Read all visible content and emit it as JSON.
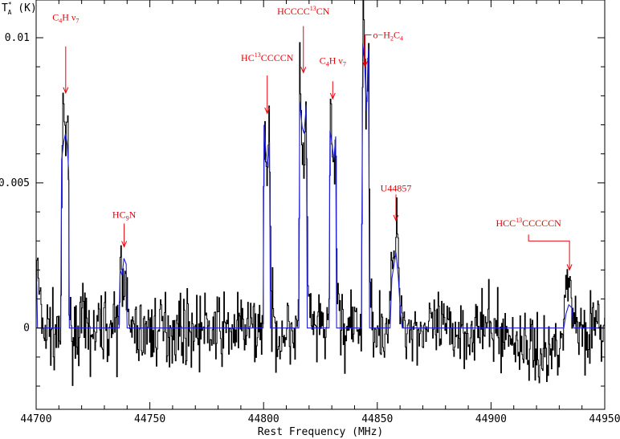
{
  "chart_data": {
    "type": "line",
    "xlabel": "Rest Frequency (MHz)",
    "ylabel": {
      "base": "T",
      "sup": "*",
      "sub": "A",
      "unit": " (K)"
    },
    "xlim": [
      44700,
      44950
    ],
    "ylim": [
      -0.0028,
      0.0113
    ],
    "x_ticks": [
      44700,
      44750,
      44800,
      44850,
      44900,
      44950
    ],
    "x_tick_labels": [
      "44700",
      "44750",
      "44800",
      "44850",
      "44900",
      "44950"
    ],
    "y_ticks": [
      0,
      0.005,
      0.01
    ],
    "y_tick_labels": [
      "0",
      "0.005",
      "0.01"
    ],
    "grid": false,
    "series": [
      {
        "role": "observed spectrum",
        "color": "#000000",
        "noise_rms": 0.0006,
        "points": [
          [
            44700.0,
            0.0022
          ],
          [
            44701.0,
            0.0015
          ],
          [
            44702.0,
            0.0003
          ],
          [
            44704.0,
            -0.0002
          ],
          [
            44706.0,
            0.0001
          ],
          [
            44708.0,
            -0.0004
          ],
          [
            44710.0,
            0.0002
          ],
          [
            44710.8,
            -0.0006
          ],
          [
            44711.2,
            0.0055
          ],
          [
            44711.8,
            0.0081
          ],
          [
            44712.3,
            0.0066
          ],
          [
            44712.9,
            0.0061
          ],
          [
            44713.5,
            0.0073
          ],
          [
            44714.0,
            0.007
          ],
          [
            44714.4,
            0.001
          ],
          [
            44715.0,
            -0.0003
          ],
          [
            44720.0,
            0.0001
          ],
          [
            44725.0,
            -0.0003
          ],
          [
            44730.0,
            0.0002
          ],
          [
            44735.0,
            -0.0002
          ],
          [
            44736.4,
            0.0
          ],
          [
            44736.8,
            0.0025
          ],
          [
            44737.6,
            0.0018
          ],
          [
            44738.2,
            0.0015
          ],
          [
            44739.2,
            0.0026
          ],
          [
            44739.9,
            0.001
          ],
          [
            44740.5,
            -0.0002
          ],
          [
            44760.0,
            0.0
          ],
          [
            44780.0,
            -0.0001
          ],
          [
            44799.6,
            0.0
          ],
          [
            44800.1,
            0.0073
          ],
          [
            44800.8,
            0.0062
          ],
          [
            44801.6,
            0.005
          ],
          [
            44802.4,
            0.0071
          ],
          [
            44803.1,
            0.0008
          ],
          [
            44805.0,
            -0.0002
          ],
          [
            44815.3,
            0.0
          ],
          [
            44815.8,
            0.0089
          ],
          [
            44816.6,
            0.0073
          ],
          [
            44817.5,
            0.005
          ],
          [
            44818.6,
            0.0079
          ],
          [
            44819.3,
            0.001
          ],
          [
            44822.0,
            -0.0002
          ],
          [
            44828.6,
            0.0
          ],
          [
            44829.2,
            0.0075
          ],
          [
            44829.9,
            0.0063
          ],
          [
            44830.8,
            0.0052
          ],
          [
            44831.6,
            0.0069
          ],
          [
            44832.2,
            0.001
          ],
          [
            44835.0,
            -0.0001
          ],
          [
            44842.8,
            0.0
          ],
          [
            44843.6,
            0.0112
          ],
          [
            44844.5,
            0.0092
          ],
          [
            44845.0,
            0.007
          ],
          [
            44846.0,
            0.0101
          ],
          [
            44846.7,
            0.0008
          ],
          [
            44850.0,
            0.0
          ],
          [
            44855.3,
            0.0
          ],
          [
            44856.0,
            0.0018
          ],
          [
            44857.0,
            0.0022
          ],
          [
            44858.2,
            0.0035
          ],
          [
            44859.4,
            0.002
          ],
          [
            44861.0,
            0.0004
          ],
          [
            44863.0,
            0.0
          ],
          [
            44880.0,
            -0.0001
          ],
          [
            44900.0,
            0.0
          ],
          [
            44925.0,
            -0.001
          ],
          [
            44931.5,
            0.0
          ],
          [
            44933.0,
            0.0012
          ],
          [
            44934.5,
            0.0016
          ],
          [
            44936.5,
            0.0004
          ],
          [
            44938.0,
            0.0
          ],
          [
            44950.0,
            0.0
          ]
        ]
      },
      {
        "role": "model fit",
        "color": "#1f1fd6",
        "points": [
          [
            44700.0,
            0.0022
          ],
          [
            44700.3,
            0.0014
          ],
          [
            44700.6,
            0.0
          ],
          [
            44710.8,
            0.0
          ],
          [
            44711.2,
            0.0058
          ],
          [
            44712.1,
            0.0064
          ],
          [
            44712.9,
            0.0067
          ],
          [
            44713.7,
            0.0063
          ],
          [
            44714.3,
            0.0054
          ],
          [
            44714.6,
            0.0
          ],
          [
            44736.5,
            0.0
          ],
          [
            44736.9,
            0.002
          ],
          [
            44737.8,
            0.0018
          ],
          [
            44738.6,
            0.0024
          ],
          [
            44739.6,
            0.0022
          ],
          [
            44740.0,
            0.0
          ],
          [
            44799.8,
            0.0
          ],
          [
            44800.2,
            0.007
          ],
          [
            44801.0,
            0.0061
          ],
          [
            44801.8,
            0.0055
          ],
          [
            44802.6,
            0.0064
          ],
          [
            44803.0,
            0.0
          ],
          [
            44815.5,
            0.0
          ],
          [
            44815.9,
            0.0078
          ],
          [
            44817.0,
            0.0069
          ],
          [
            44817.8,
            0.0067
          ],
          [
            44818.8,
            0.0077
          ],
          [
            44819.2,
            0.0
          ],
          [
            44828.8,
            0.0
          ],
          [
            44829.2,
            0.0068
          ],
          [
            44830.0,
            0.0064
          ],
          [
            44830.9,
            0.0058
          ],
          [
            44831.7,
            0.0066
          ],
          [
            44832.1,
            0.0
          ],
          [
            44843.0,
            0.0
          ],
          [
            44843.6,
            0.0098
          ],
          [
            44844.4,
            0.0092
          ],
          [
            44845.2,
            0.0075
          ],
          [
            44846.1,
            0.0096
          ],
          [
            44846.6,
            0.0
          ],
          [
            44855.6,
            0.0
          ],
          [
            44856.4,
            0.0017
          ],
          [
            44857.4,
            0.0022
          ],
          [
            44858.2,
            0.0026
          ],
          [
            44859.2,
            0.0018
          ],
          [
            44860.2,
            0.0005
          ],
          [
            44861.0,
            0.0
          ],
          [
            44932.0,
            0.0
          ],
          [
            44933.0,
            0.0005
          ],
          [
            44934.2,
            0.0008
          ],
          [
            44935.5,
            0.0007
          ],
          [
            44936.3,
            0.0
          ],
          [
            44950.0,
            0.0
          ]
        ]
      }
    ],
    "annotations": [
      {
        "id": "c4h-nu7-a",
        "parts": [
          [
            "C",
            "n"
          ],
          [
            "4",
            "sub"
          ],
          [
            "H  ",
            "n"
          ],
          [
            "ν",
            "n"
          ],
          [
            "7",
            "sub"
          ]
        ],
        "x": 44713.0,
        "arrow_top": 0.0097,
        "arrow_bottom": 0.0081,
        "label_y": 0.0106
      },
      {
        "id": "hc9n",
        "parts": [
          [
            "HC",
            "n"
          ],
          [
            "9",
            "sub"
          ],
          [
            "N",
            "n"
          ]
        ],
        "x": 44738.7,
        "arrow_top": 0.0036,
        "arrow_bottom": 0.0028,
        "label_y": 0.0038
      },
      {
        "id": "hc13ccccn",
        "parts": [
          [
            "HC",
            "n"
          ],
          [
            "13",
            "sup"
          ],
          [
            "CCCCN",
            "n"
          ]
        ],
        "x": 44801.6,
        "arrow_top": 0.0087,
        "arrow_bottom": 0.0074,
        "label_y": 0.0092
      },
      {
        "id": "hcccc13cn",
        "parts": [
          [
            "HCCCC",
            "n"
          ],
          [
            "13",
            "sup"
          ],
          [
            "CN",
            "n"
          ]
        ],
        "x": 44817.5,
        "arrow_top": 0.0104,
        "arrow_bottom": 0.0088,
        "label_y": 0.0108
      },
      {
        "id": "c4h-nu7-b",
        "parts": [
          [
            "C",
            "n"
          ],
          [
            "4",
            "sub"
          ],
          [
            "H  ",
            "n"
          ],
          [
            "ν",
            "n"
          ],
          [
            "7",
            "sub"
          ]
        ],
        "x": 44830.4,
        "arrow_top": 0.0085,
        "arrow_bottom": 0.0079,
        "label_y": 0.0091
      },
      {
        "id": "o-h2c4",
        "parts": [
          [
            "o−H",
            "n"
          ],
          [
            "2",
            "sub"
          ],
          [
            "C",
            "n"
          ],
          [
            "4",
            "sub"
          ]
        ],
        "x": 44844.6,
        "arrow_top": 0.0101,
        "arrow_bottom": 0.009,
        "label_y": 0.0099,
        "label_x": 44851.5,
        "leader": true
      },
      {
        "id": "u44857",
        "parts": [
          [
            "U44857",
            "n"
          ]
        ],
        "x": 44858.2,
        "arrow_top": 0.0046,
        "arrow_bottom": 0.0037,
        "label_y": 0.0047
      },
      {
        "id": "hcc13cccccn",
        "parts": [
          [
            "HCC",
            "n"
          ],
          [
            "13",
            "sup"
          ],
          [
            "CCCCCN",
            "n"
          ]
        ],
        "x": 44934.5,
        "arrow_top": 0.003,
        "arrow_bottom": 0.002,
        "label_y": 0.0035,
        "label_x": 44916.5,
        "elbow": [
          44916.5,
          0.003
        ]
      }
    ]
  }
}
